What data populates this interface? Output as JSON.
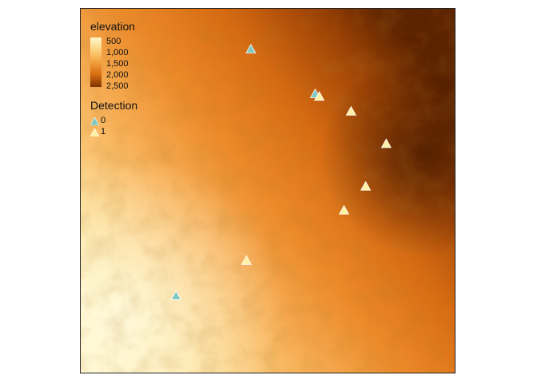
{
  "map": {
    "background_gradient": [
      "#fff6c8",
      "#fde29b",
      "#f8b25a",
      "#ec8a2a",
      "#d66a12",
      "#9c4205",
      "#5c2300"
    ]
  },
  "legend_elevation": {
    "title": "elevation",
    "breaks": [
      "500",
      "1,000",
      "1,500",
      "2,000",
      "2,500"
    ],
    "colors": [
      "#fff7cc",
      "#fcd27f",
      "#f2a03c",
      "#d66c10",
      "#7e3300"
    ]
  },
  "legend_detection": {
    "title": "Detection",
    "items": [
      {
        "label": "0",
        "color": "#7fc9c2"
      },
      {
        "label": "1",
        "color": "#fdf1a6"
      }
    ]
  },
  "points": [
    {
      "detection": 0,
      "x": 0.455,
      "y": 0.111
    },
    {
      "detection": 0,
      "x": 0.627,
      "y": 0.234
    },
    {
      "detection": 1,
      "x": 0.638,
      "y": 0.241
    },
    {
      "detection": 1,
      "x": 0.723,
      "y": 0.282
    },
    {
      "detection": 1,
      "x": 0.817,
      "y": 0.371
    },
    {
      "detection": 1,
      "x": 0.762,
      "y": 0.488
    },
    {
      "detection": 1,
      "x": 0.704,
      "y": 0.554
    },
    {
      "detection": 1,
      "x": 0.443,
      "y": 0.692
    },
    {
      "detection": 0,
      "x": 0.255,
      "y": 0.789
    }
  ]
}
